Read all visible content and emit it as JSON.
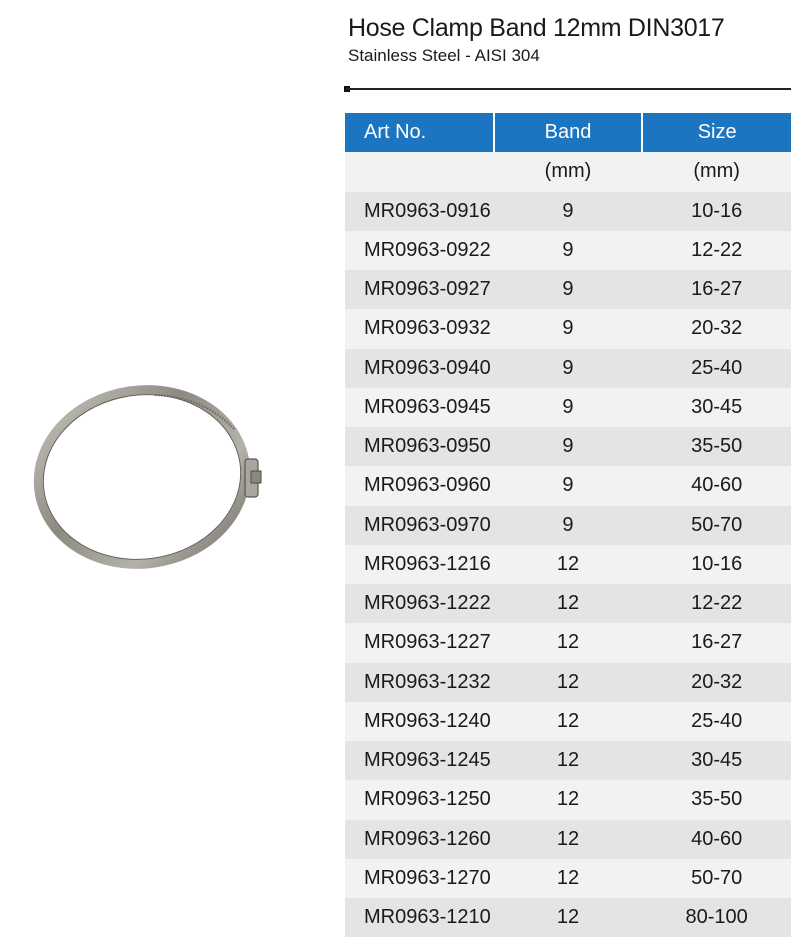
{
  "header": {
    "title": "Hose Clamp Band 12mm DIN3017",
    "subtitle": "Stainless Steel - AISI 304"
  },
  "image": {
    "subject": "hose-clamp"
  },
  "table": {
    "headers": [
      "Art No.",
      "Band",
      "Size"
    ],
    "units": [
      "",
      "(mm)",
      "(mm)"
    ],
    "header_color": "#1b75c0",
    "rows": [
      [
        "MR0963-0916",
        "9",
        "10-16"
      ],
      [
        "MR0963-0922",
        "9",
        "12-22"
      ],
      [
        "MR0963-0927",
        "9",
        "16-27"
      ],
      [
        "MR0963-0932",
        "9",
        "20-32"
      ],
      [
        "MR0963-0940",
        "9",
        "25-40"
      ],
      [
        "MR0963-0945",
        "9",
        "30-45"
      ],
      [
        "MR0963-0950",
        "9",
        "35-50"
      ],
      [
        "MR0963-0960",
        "9",
        "40-60"
      ],
      [
        "MR0963-0970",
        "9",
        "50-70"
      ],
      [
        "MR0963-1216",
        "12",
        "10-16"
      ],
      [
        "MR0963-1222",
        "12",
        "12-22"
      ],
      [
        "MR0963-1227",
        "12",
        "16-27"
      ],
      [
        "MR0963-1232",
        "12",
        "20-32"
      ],
      [
        "MR0963-1240",
        "12",
        "25-40"
      ],
      [
        "MR0963-1245",
        "12",
        "30-45"
      ],
      [
        "MR0963-1250",
        "12",
        "35-50"
      ],
      [
        "MR0963-1260",
        "12",
        "40-60"
      ],
      [
        "MR0963-1270",
        "12",
        "50-70"
      ],
      [
        "MR0963-1210",
        "12",
        "80-100"
      ]
    ]
  }
}
